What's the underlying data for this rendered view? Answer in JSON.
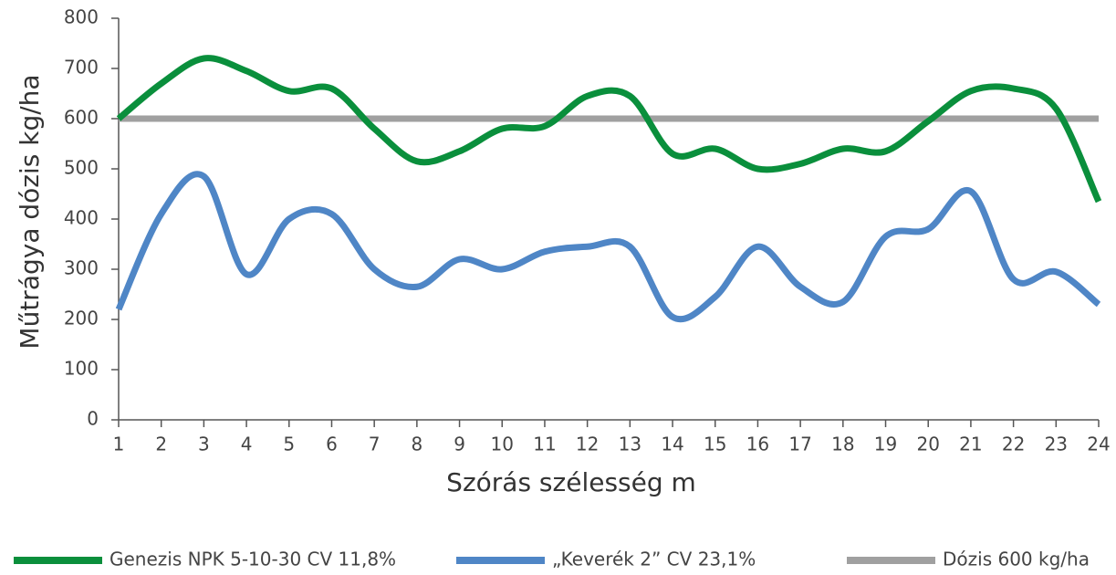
{
  "chart_data": {
    "type": "line",
    "y_label": "Műtrágya dózis kg/ha",
    "x_label": "Szórás szélesség m",
    "x": [
      1,
      2,
      3,
      4,
      5,
      6,
      7,
      8,
      9,
      10,
      11,
      12,
      13,
      14,
      15,
      16,
      17,
      18,
      19,
      20,
      21,
      22,
      23,
      24
    ],
    "xlim": [
      1,
      24
    ],
    "xticks": [
      1,
      2,
      3,
      4,
      5,
      6,
      7,
      8,
      9,
      10,
      11,
      12,
      13,
      14,
      15,
      16,
      17,
      18,
      19,
      20,
      21,
      22,
      23,
      24
    ],
    "ylim": [
      0,
      800
    ],
    "yticks": [
      0,
      100,
      200,
      300,
      400,
      500,
      600,
      700,
      800
    ],
    "legend": "bottom",
    "smooth": true,
    "series": [
      {
        "name": "Genezis NPK 5-10-30 CV 11,8%",
        "color": "#0a8f3c",
        "values": [
          600,
          670,
          720,
          695,
          655,
          660,
          580,
          515,
          535,
          580,
          585,
          645,
          645,
          530,
          540,
          500,
          510,
          540,
          535,
          595,
          655,
          660,
          620,
          435
        ]
      },
      {
        "name": "„Keverék 2” CV 23,1%",
        "color": "#4f86c6",
        "values": [
          220,
          410,
          485,
          290,
          400,
          410,
          300,
          265,
          320,
          300,
          335,
          345,
          345,
          205,
          245,
          345,
          265,
          235,
          365,
          380,
          455,
          280,
          295,
          230
        ]
      },
      {
        "name": "Dózis 600 kg/ha",
        "color": "#a0a0a0",
        "values": [
          600,
          600,
          600,
          600,
          600,
          600,
          600,
          600,
          600,
          600,
          600,
          600,
          600,
          600,
          600,
          600,
          600,
          600,
          600,
          600,
          600,
          600,
          600,
          600
        ]
      }
    ]
  }
}
